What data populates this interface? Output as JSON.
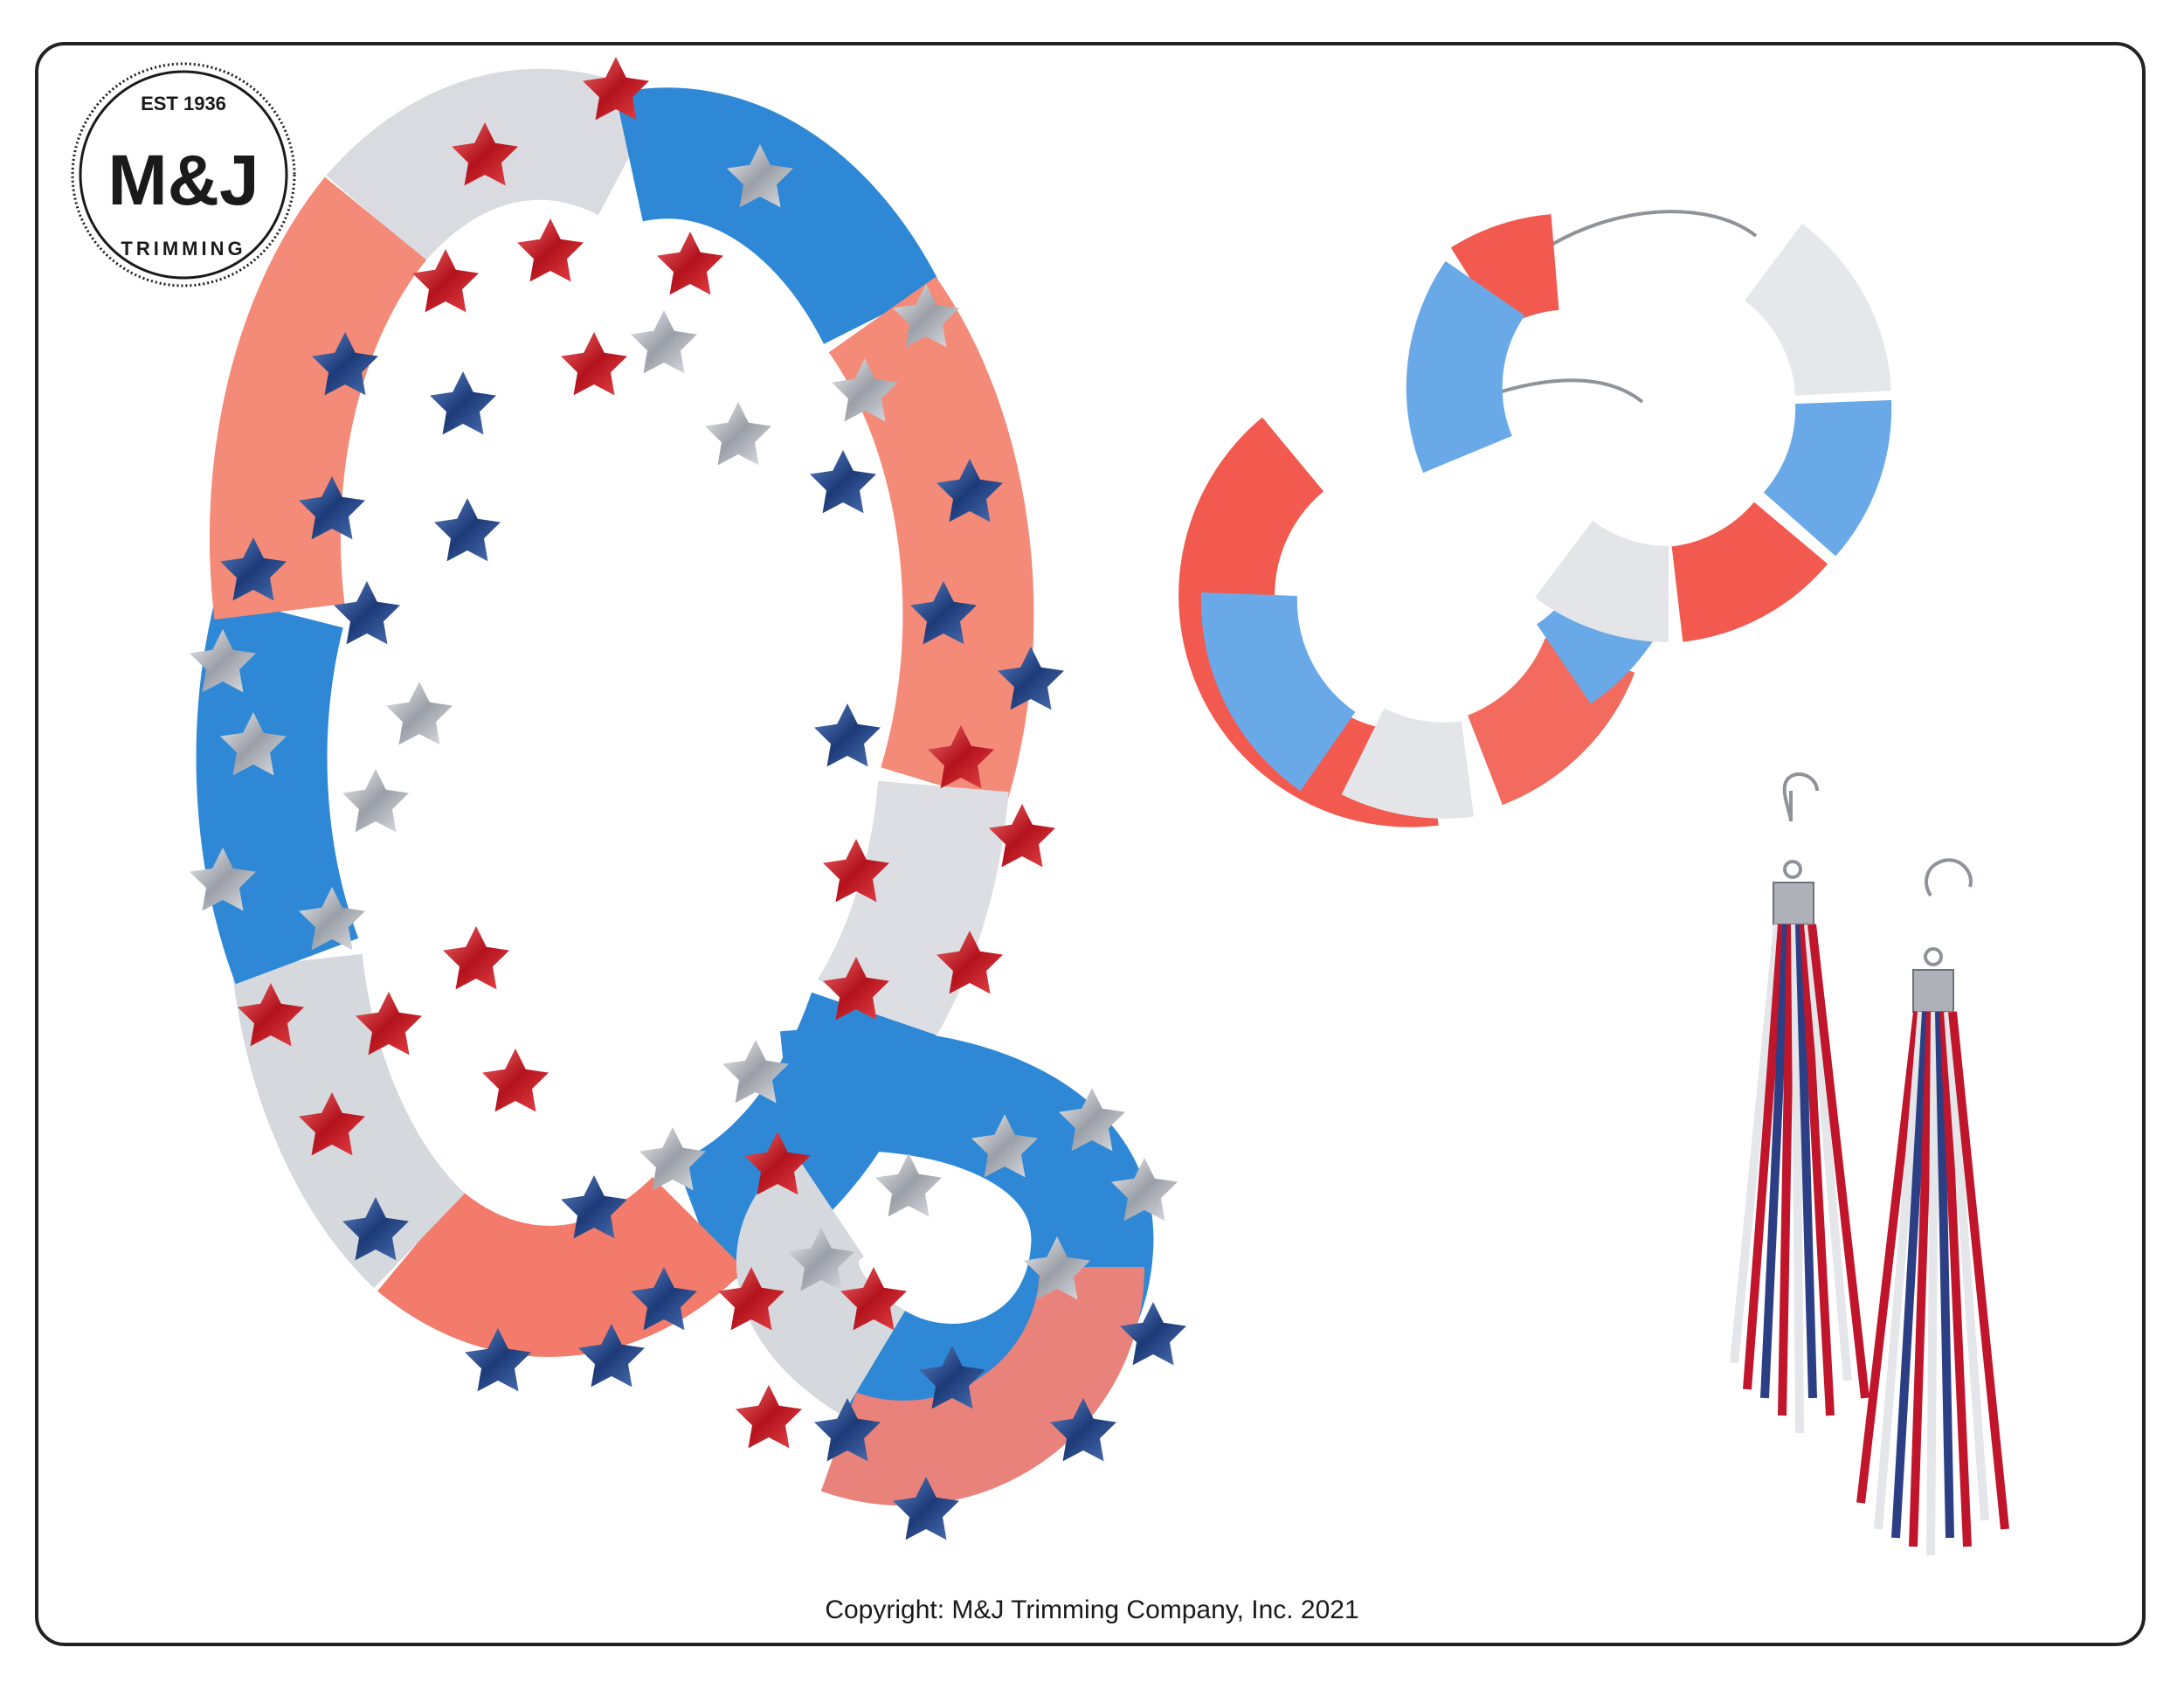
{
  "logo": {
    "est": "EST 1936",
    "brand": "M&J",
    "sub": "TRIMMING"
  },
  "footer": {
    "copyright": "Copyright: M&J Trimming Company, Inc. 2021"
  },
  "colors": {
    "red": "#d8262f",
    "coral": "#f27b6b",
    "blue": "#2f88d6",
    "silver": "#c9ccd2",
    "navy": "#2c4a8a"
  }
}
